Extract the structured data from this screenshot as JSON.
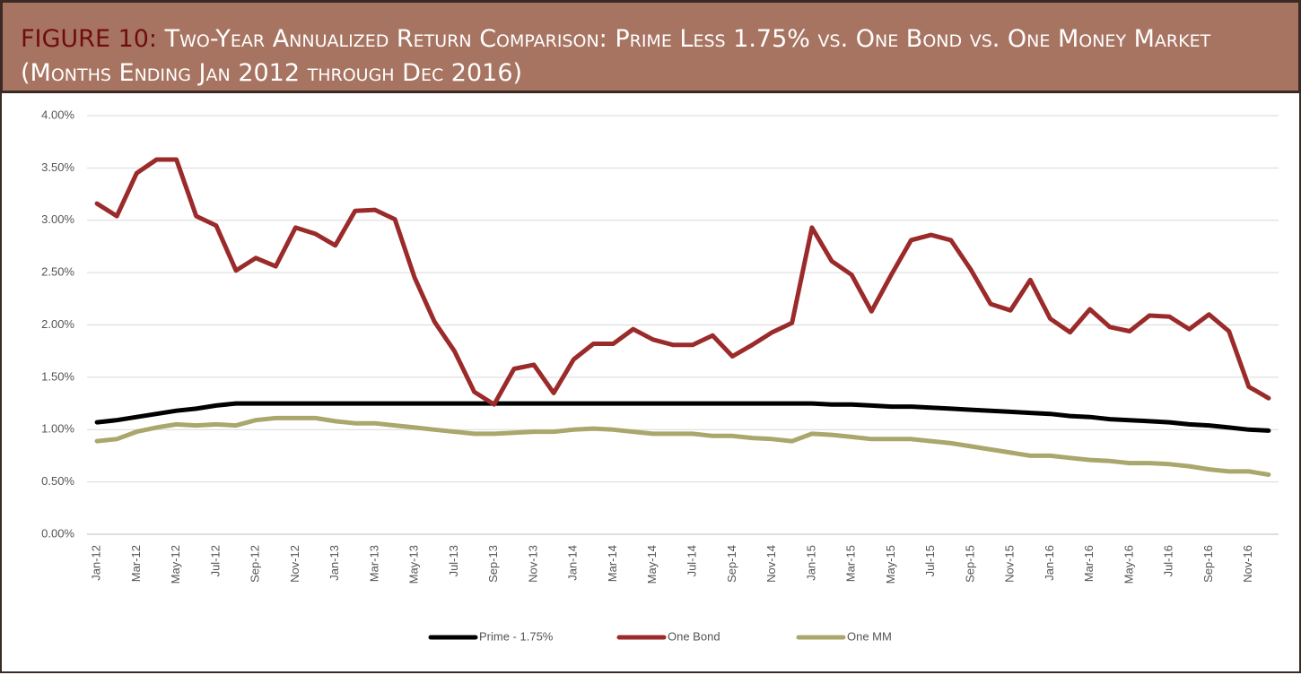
{
  "chart_data": {
    "type": "line",
    "figure_label": "FIGURE 10:",
    "title": "Two-Year Annualized Return Comparison: Prime Less 1.75% vs. One Bond vs. One Money Market (Months Ending Jan 2012 through Dec 2016)",
    "categories": [
      "Jan-12",
      null,
      "Mar-12",
      null,
      "May-12",
      null,
      "Jul-12",
      null,
      "Sep-12",
      null,
      "Nov-12",
      null,
      "Jan-13",
      null,
      "Mar-13",
      null,
      "May-13",
      null,
      "Jul-13",
      null,
      "Sep-13",
      null,
      "Nov-13",
      null,
      "Jan-14",
      null,
      "Mar-14",
      null,
      "May-14",
      null,
      "Jul-14",
      null,
      "Sep-14",
      null,
      "Nov-14",
      null,
      "Jan-15",
      null,
      "Mar-15",
      null,
      "May-15",
      null,
      "Jul-15",
      null,
      "Sep-15",
      null,
      "Nov-15",
      null,
      "Jan-16",
      null,
      "Mar-16",
      null,
      "May-16",
      null,
      "Jul-16",
      null,
      "Sep-16",
      null,
      "Nov-16",
      null
    ],
    "series": [
      {
        "name": "Prime - 1.75%",
        "color": "#000000",
        "values": [
          1.07,
          1.09,
          1.12,
          1.15,
          1.18,
          1.2,
          1.23,
          1.25,
          1.25,
          1.25,
          1.25,
          1.25,
          1.25,
          1.25,
          1.25,
          1.25,
          1.25,
          1.25,
          1.25,
          1.25,
          1.25,
          1.25,
          1.25,
          1.25,
          1.25,
          1.25,
          1.25,
          1.25,
          1.25,
          1.25,
          1.25,
          1.25,
          1.25,
          1.25,
          1.25,
          1.25,
          1.25,
          1.24,
          1.24,
          1.23,
          1.22,
          1.22,
          1.21,
          1.2,
          1.19,
          1.18,
          1.17,
          1.16,
          1.15,
          1.13,
          1.12,
          1.1,
          1.09,
          1.08,
          1.07,
          1.05,
          1.04,
          1.02,
          1.0,
          0.99
        ]
      },
      {
        "name": "One Bond",
        "color": "#9b2a2a",
        "values": [
          3.16,
          3.04,
          3.45,
          3.58,
          3.58,
          3.04,
          2.95,
          2.52,
          2.64,
          2.56,
          2.93,
          2.87,
          2.76,
          3.09,
          3.1,
          3.01,
          2.45,
          2.03,
          1.75,
          1.36,
          1.24,
          1.58,
          1.62,
          1.35,
          1.67,
          1.82,
          1.82,
          1.96,
          1.86,
          1.81,
          1.81,
          1.9,
          1.7,
          1.81,
          1.93,
          2.02,
          2.93,
          2.61,
          2.48,
          2.13,
          2.48,
          2.81,
          2.86,
          2.81,
          2.53,
          2.2,
          2.14,
          2.43,
          2.06,
          1.93,
          2.15,
          1.98,
          1.94,
          2.09,
          2.08,
          1.96,
          2.1,
          1.94,
          1.41,
          1.3
        ]
      },
      {
        "name": "One MM",
        "color": "#a9a76c",
        "values": [
          0.89,
          0.91,
          0.98,
          1.02,
          1.05,
          1.04,
          1.05,
          1.04,
          1.09,
          1.11,
          1.11,
          1.11,
          1.08,
          1.06,
          1.06,
          1.04,
          1.02,
          1.0,
          0.98,
          0.96,
          0.96,
          0.97,
          0.98,
          0.98,
          1.0,
          1.01,
          1.0,
          0.98,
          0.96,
          0.96,
          0.96,
          0.94,
          0.94,
          0.92,
          0.91,
          0.89,
          0.96,
          0.95,
          0.93,
          0.91,
          0.91,
          0.91,
          0.89,
          0.87,
          0.84,
          0.81,
          0.78,
          0.75,
          0.75,
          0.73,
          0.71,
          0.7,
          0.68,
          0.68,
          0.67,
          0.65,
          0.62,
          0.6,
          0.6,
          0.57
        ]
      }
    ],
    "ylim": [
      0,
      4
    ],
    "yticks": [
      {
        "value": 0,
        "label": "0.00%"
      },
      {
        "value": 0.5,
        "label": "0.50%"
      },
      {
        "value": 1,
        "label": "1.00%"
      },
      {
        "value": 1.5,
        "label": "1.50%"
      },
      {
        "value": 2,
        "label": "2.00%"
      },
      {
        "value": 2.5,
        "label": "2.50%"
      },
      {
        "value": 3,
        "label": "3.00%"
      },
      {
        "value": 3.5,
        "label": "3.50%"
      },
      {
        "value": 4,
        "label": "4.00%"
      }
    ],
    "grid": true,
    "legend": "bottom"
  }
}
